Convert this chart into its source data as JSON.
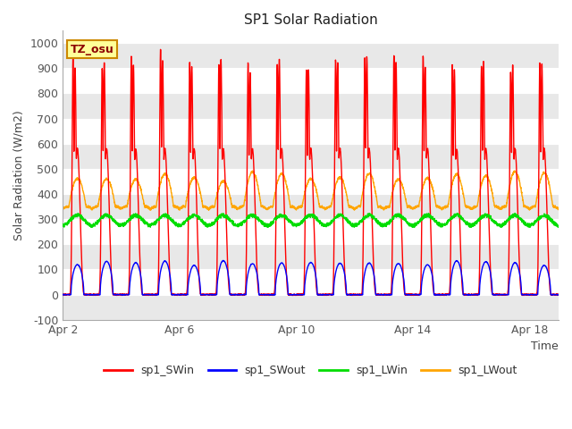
{
  "title": "SP1 Solar Radiation",
  "ylabel": "Solar Radiation (W/m2)",
  "xlabel": "Time",
  "ylim": [
    -100,
    1050
  ],
  "xlim_start": 0,
  "xlim_end": 17,
  "xtick_positions": [
    0,
    4,
    8,
    12,
    16
  ],
  "xtick_labels": [
    "Apr 2",
    "Apr 6",
    "Apr 10",
    "Apr 14",
    "Apr 18"
  ],
  "ytick_positions": [
    -100,
    0,
    100,
    200,
    300,
    400,
    500,
    600,
    700,
    800,
    900,
    1000
  ],
  "colors": {
    "sp1_SWin": "#ff0000",
    "sp1_SWout": "#0000ff",
    "sp1_LWin": "#00dd00",
    "sp1_LWout": "#ffa500"
  },
  "annotation_text": "TZ_osu",
  "annotation_bg": "#ffff99",
  "annotation_border": "#cc8800",
  "band_colors": [
    "#e8e8e8",
    "#ffffff"
  ],
  "title_fontsize": 11,
  "label_fontsize": 9,
  "tick_fontsize": 9,
  "legend_fontsize": 9,
  "num_days": 17,
  "samples_per_day": 144
}
